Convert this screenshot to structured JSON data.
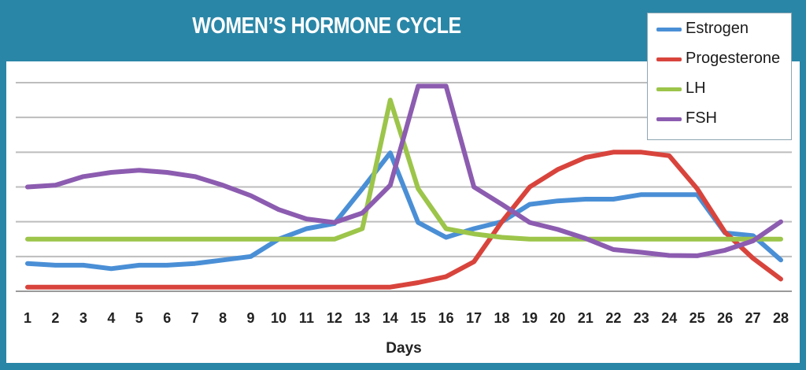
{
  "chart_data": {
    "type": "line",
    "title": "WOMEN’S HORMONE CYCLE",
    "xlabel": "Days",
    "ylabel": "",
    "x": [
      1,
      2,
      3,
      4,
      5,
      6,
      7,
      8,
      9,
      10,
      11,
      12,
      13,
      14,
      15,
      16,
      17,
      18,
      19,
      20,
      21,
      22,
      23,
      24,
      25,
      26,
      27,
      28
    ],
    "ylim": [
      0,
      6
    ],
    "yticks_labeled": false,
    "grid": true,
    "legend_position": "top-right",
    "series": [
      {
        "name": "Estrogen",
        "color": "#4a8fd6",
        "values": [
          0.8,
          0.75,
          0.75,
          0.65,
          0.75,
          0.75,
          0.8,
          0.9,
          1.0,
          1.5,
          1.8,
          1.95,
          2.95,
          3.98,
          1.98,
          1.55,
          1.8,
          2.0,
          2.5,
          2.6,
          2.65,
          2.65,
          2.78,
          2.78,
          2.78,
          1.68,
          1.6,
          0.9
        ]
      },
      {
        "name": "Progesterone",
        "color": "#d8443c",
        "values": [
          0.12,
          0.12,
          0.12,
          0.12,
          0.12,
          0.12,
          0.12,
          0.12,
          0.12,
          0.12,
          0.12,
          0.12,
          0.12,
          0.12,
          0.25,
          0.42,
          0.85,
          2.0,
          3.0,
          3.5,
          3.85,
          4.0,
          4.0,
          3.9,
          2.95,
          1.7,
          0.95,
          0.35
        ]
      },
      {
        "name": "LH",
        "color": "#9cc54a",
        "values": [
          1.5,
          1.5,
          1.5,
          1.5,
          1.5,
          1.5,
          1.5,
          1.5,
          1.5,
          1.5,
          1.5,
          1.5,
          1.8,
          5.5,
          2.95,
          1.8,
          1.65,
          1.55,
          1.5,
          1.5,
          1.5,
          1.5,
          1.5,
          1.5,
          1.5,
          1.5,
          1.5,
          1.5
        ]
      },
      {
        "name": "FSH",
        "color": "#8c5cb0",
        "values": [
          3.0,
          3.05,
          3.3,
          3.42,
          3.48,
          3.42,
          3.3,
          3.05,
          2.75,
          2.35,
          2.08,
          1.98,
          2.25,
          3.05,
          5.9,
          5.9,
          3.0,
          2.5,
          1.98,
          1.78,
          1.52,
          1.2,
          1.12,
          1.03,
          1.02,
          1.18,
          1.45,
          2.0
        ]
      }
    ]
  }
}
